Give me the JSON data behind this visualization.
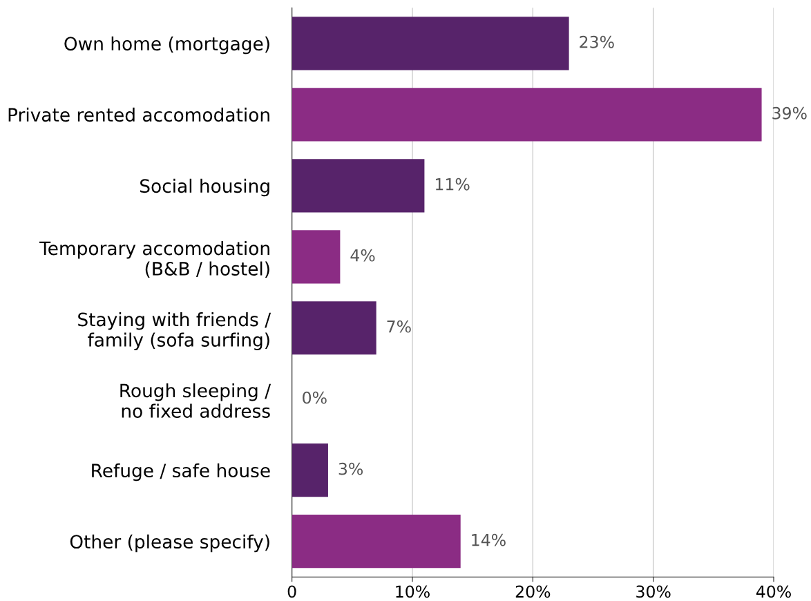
{
  "chart_data": {
    "type": "bar",
    "orientation": "horizontal",
    "categories": [
      "Own home (mortgage)",
      "Private rented accomodation",
      "Social housing",
      "Temporary accomodation\n(B&B / hostel)",
      "Staying with friends /\nfamily (sofa surfing)",
      "Rough sleeping /\nno fixed address",
      "Refuge / safe house",
      "Other (please specify)"
    ],
    "values": [
      23,
      39,
      11,
      4,
      7,
      0,
      3,
      14
    ],
    "colors": [
      "#57236a",
      "#8b2c84",
      "#57236a",
      "#8b2c84",
      "#57236a",
      "#8b2c84",
      "#57236a",
      "#8b2c84"
    ],
    "value_labels": [
      "23%",
      "39%",
      "11%",
      "4%",
      "7%",
      "0%",
      "3%",
      "14%"
    ],
    "xlim": [
      0,
      40
    ],
    "xticks": [
      0,
      {
        "value": 10,
        "label": "10%"
      },
      {
        "value": 20,
        "label": "20%"
      },
      {
        "value": 30,
        "label": "30%"
      },
      {
        "value": 40,
        "label": "40%"
      }
    ],
    "grid": "x",
    "legend": false
  }
}
